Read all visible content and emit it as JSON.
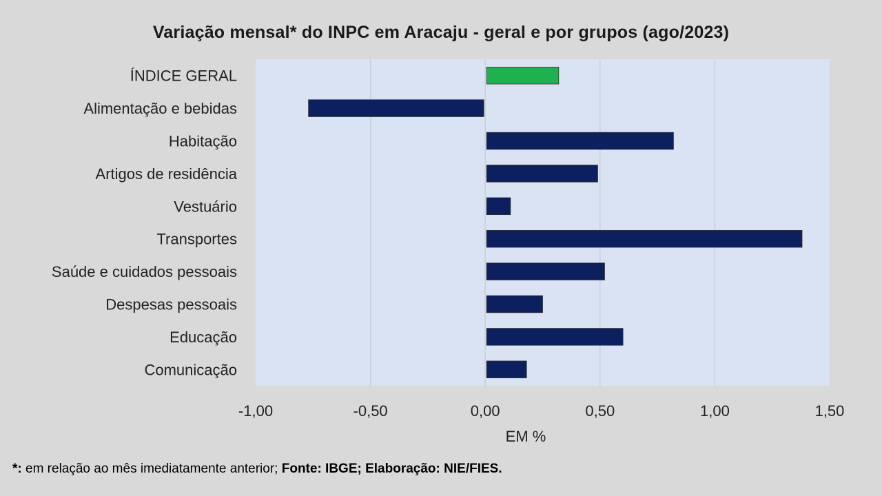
{
  "chart_data": {
    "type": "bar",
    "orientation": "horizontal",
    "title": "Variação  mensal*  do INPC em Aracaju  - geral e por grupos  (ago/2023)",
    "xlabel": "EM %",
    "ylabel": "",
    "categories": [
      "ÍNDICE GERAL",
      "Alimentação e bebidas",
      "Habitação",
      "Artigos de residência",
      "Vestuário",
      "Transportes",
      "Saúde e cuidados pessoais",
      "Despesas pessoais",
      "Educação",
      "Comunicação"
    ],
    "values": [
      0.32,
      -0.77,
      0.82,
      0.49,
      0.11,
      1.38,
      0.52,
      0.25,
      0.6,
      0.18
    ],
    "xlim": [
      -1.0,
      1.5
    ],
    "xticks": [
      -1.0,
      -0.5,
      0.0,
      0.5,
      1.0,
      1.5
    ],
    "xtick_labels": [
      "-1,00",
      "-0,50",
      "0,00",
      "0,50",
      "1,00",
      "1,50"
    ],
    "grid": true,
    "colors": {
      "highlight": "#1fb050",
      "bars": "#0c1f5e",
      "plot_background": "#dae3f3",
      "page_background": "#d9d9d9",
      "gridline": "#c8cfdb"
    }
  },
  "footnote": {
    "part1": "*: ",
    "part2": "em relação ao mês imediatamente anterior; ",
    "part3": "Fonte: IBGE; Elaboração: NIE/FIES."
  }
}
